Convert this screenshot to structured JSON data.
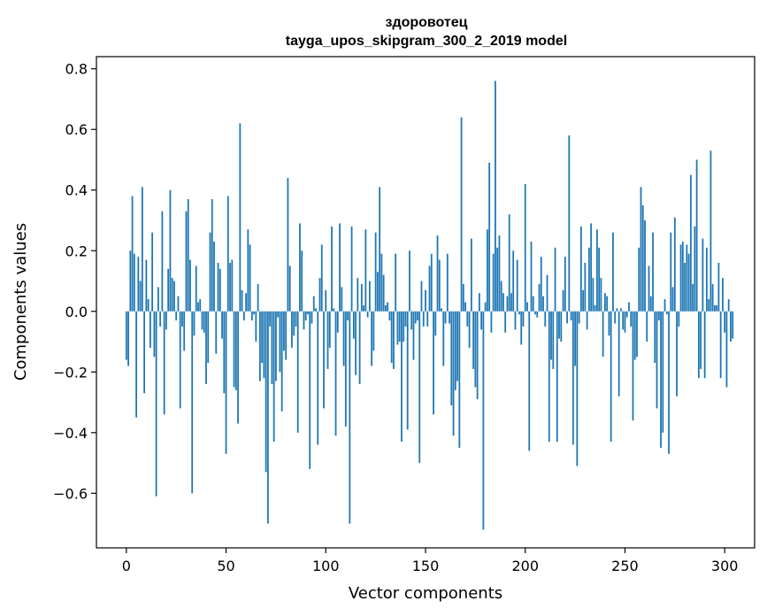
{
  "chart_data": {
    "type": "bar",
    "title": "здоровотец",
    "subtitle": "tayga_upos_skipgram_300_2_2019 model",
    "xlabel": "Vector components",
    "ylabel": "Components values",
    "xlim": [
      -15,
      315
    ],
    "ylim": [
      -0.78,
      0.84
    ],
    "xticks": [
      0,
      50,
      100,
      150,
      200,
      250,
      300
    ],
    "yticks": [
      -0.6,
      -0.4,
      -0.2,
      0.0,
      0.2,
      0.4,
      0.6,
      0.8
    ],
    "xtick_labels": [
      "0",
      "50",
      "100",
      "150",
      "200",
      "250",
      "300"
    ],
    "ytick_labels": [
      "−0.6",
      "−0.4",
      "−0.2",
      "0.0",
      "0.2",
      "0.4",
      "0.6",
      "0.8"
    ],
    "bar_color": "#1f77b4",
    "grid": false,
    "values": [
      -0.16,
      -0.18,
      0.2,
      0.38,
      0.19,
      -0.35,
      0.18,
      0.1,
      0.41,
      -0.27,
      0.17,
      0.04,
      -0.12,
      0.26,
      -0.15,
      -0.61,
      0.08,
      -0.05,
      0.33,
      -0.34,
      -0.06,
      0.14,
      0.4,
      0.11,
      0.1,
      -0.03,
      0.05,
      -0.32,
      -0.05,
      -0.13,
      0.33,
      0.37,
      0.17,
      -0.6,
      -0.08,
      0.15,
      0.03,
      0.04,
      -0.06,
      -0.07,
      -0.24,
      -0.17,
      0.26,
      0.37,
      0.23,
      -0.14,
      0.16,
      0.14,
      -0.09,
      -0.27,
      -0.47,
      0.38,
      0.16,
      0.17,
      -0.25,
      -0.26,
      -0.37,
      0.62,
      0.07,
      -0.03,
      0.06,
      0.27,
      0.22,
      -0.03,
      -0.01,
      -0.1,
      0.09,
      -0.23,
      -0.17,
      -0.22,
      -0.53,
      -0.7,
      -0.05,
      -0.24,
      -0.43,
      -0.23,
      -0.02,
      -0.2,
      -0.33,
      -0.13,
      -0.16,
      0.44,
      0.15,
      -0.12,
      -0.08,
      -0.05,
      -0.4,
      0.29,
      0.2,
      -0.06,
      -0.03,
      -0.01,
      -0.52,
      -0.04,
      0.05,
      0.01,
      -0.44,
      0.11,
      0.22,
      -0.32,
      0.07,
      -0.19,
      -0.12,
      0.28,
      0.01,
      -0.41,
      -0.07,
      0.29,
      0.08,
      -0.18,
      -0.38,
      -0.03,
      -0.7,
      0.28,
      -0.09,
      -0.21,
      0.11,
      -0.24,
      0.09,
      0.02,
      0.27,
      -0.02,
      0.1,
      -0.18,
      -0.13,
      0.26,
      0.13,
      0.41,
      0.19,
      0.12,
      0.02,
      0.03,
      -0.03,
      -0.17,
      -0.19,
      0.19,
      -0.11,
      -0.1,
      -0.43,
      -0.1,
      -0.05,
      -0.39,
      0.2,
      -0.06,
      -0.16,
      -0.04,
      -0.03,
      -0.5,
      0.1,
      -0.05,
      0.07,
      -0.05,
      0.15,
      0.19,
      -0.34,
      -0.08,
      0.25,
      0.17,
      0.01,
      -0.18,
      -0.04,
      0.19,
      -0.04,
      -0.31,
      -0.41,
      -0.26,
      -0.23,
      -0.45,
      0.64,
      0.09,
      0.03,
      -0.05,
      -0.12,
      0.24,
      -0.19,
      -0.25,
      -0.29,
      0.06,
      -0.06,
      -0.72,
      0.03,
      0.27,
      0.49,
      -0.07,
      0.19,
      0.76,
      0.21,
      0.25,
      0.1,
      0.06,
      -0.07,
      0.05,
      0.32,
      0.06,
      0.2,
      -0.06,
      0.17,
      -0.01,
      -0.11,
      -0.05,
      0.42,
      0.03,
      -0.46,
      0.23,
      0.05,
      -0.01,
      -0.02,
      0.09,
      0.18,
      0.05,
      -0.05,
      0.12,
      -0.43,
      -0.16,
      -0.19,
      0.21,
      -0.43,
      -0.09,
      -0.1,
      0.07,
      0.18,
      -0.04,
      0.58,
      -0.03,
      -0.44,
      -0.18,
      -0.51,
      -0.04,
      0.28,
      0.07,
      0.16,
      -0.06,
      0.21,
      0.29,
      0.11,
      0.02,
      0.27,
      0.21,
      0.11,
      -0.15,
      0.06,
      0.05,
      -0.08,
      -0.43,
      0.26,
      -0.04,
      0.01,
      -0.28,
      0.01,
      -0.06,
      -0.07,
      -0.02,
      0.03,
      -0.05,
      -0.36,
      -0.16,
      -0.15,
      0.21,
      0.41,
      0.35,
      0.3,
      -0.1,
      0.15,
      0.05,
      0.26,
      -0.17,
      -0.32,
      -0.03,
      -0.45,
      -0.4,
      0.04,
      -0.01,
      -0.47,
      0.26,
      0.08,
      0.31,
      -0.28,
      -0.05,
      0.22,
      0.23,
      0.16,
      0.22,
      0.19,
      0.45,
      0.09,
      0.28,
      0.5,
      -0.22,
      -0.19,
      0.24,
      -0.22,
      0.21,
      0.04,
      0.53,
      0.09,
      0.02,
      0.02,
      0.16,
      -0.22,
      0.11,
      -0.07,
      -0.25,
      0.04,
      -0.1,
      -0.09
    ]
  }
}
